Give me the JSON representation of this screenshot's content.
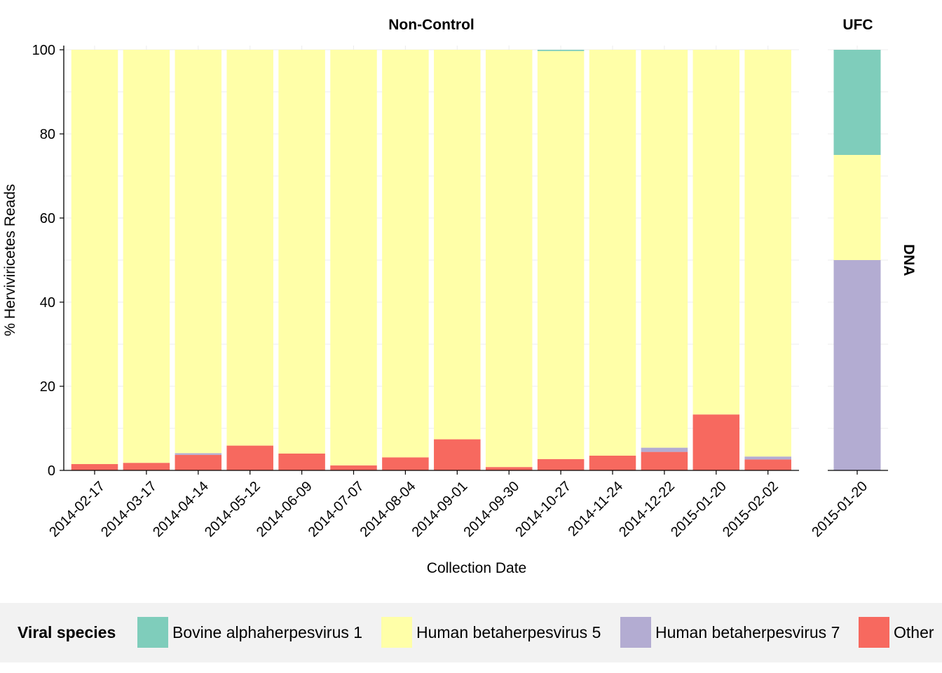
{
  "chart_data": {
    "type": "bar",
    "stacked": true,
    "xlabel": "Collection Date",
    "ylabel": "% Herviviricetes Reads",
    "ylim": [
      0,
      100
    ],
    "yticks": [
      0,
      20,
      40,
      60,
      80,
      100
    ],
    "row_strip": "DNA",
    "panels": [
      {
        "title": "Non-Control",
        "categories": [
          "2014-02-17",
          "2014-03-17",
          "2014-04-14",
          "2014-05-12",
          "2014-06-09",
          "2014-07-07",
          "2014-08-04",
          "2014-09-01",
          "2014-09-30",
          "2014-10-27",
          "2014-11-24",
          "2014-12-22",
          "2015-01-20",
          "2015-02-02"
        ],
        "series": [
          {
            "name": "Other",
            "values": [
              1.5,
              1.8,
              3.7,
              5.9,
              4.0,
              1.2,
              3.1,
              7.4,
              0.8,
              2.7,
              3.5,
              4.4,
              13.3,
              2.6
            ]
          },
          {
            "name": "Human betaherpesvirus 7",
            "values": [
              0,
              0,
              0.4,
              0,
              0,
              0,
              0,
              0,
              0,
              0,
              0,
              1.0,
              0,
              0.7
            ]
          },
          {
            "name": "Human betaherpesvirus 5",
            "values": [
              98.5,
              98.2,
              95.9,
              94.1,
              96.0,
              98.8,
              96.9,
              92.6,
              99.2,
              97.0,
              96.5,
              94.6,
              86.7,
              96.7
            ]
          },
          {
            "name": "Bovine alphaherpesvirus 1",
            "values": [
              0,
              0,
              0,
              0,
              0,
              0,
              0,
              0,
              0,
              0.3,
              0,
              0,
              0,
              0
            ]
          }
        ]
      },
      {
        "title": "UFC",
        "categories": [
          "2015-01-20"
        ],
        "series": [
          {
            "name": "Other",
            "values": [
              0
            ]
          },
          {
            "name": "Human betaherpesvirus 7",
            "values": [
              50
            ]
          },
          {
            "name": "Human betaherpesvirus 5",
            "values": [
              25
            ]
          },
          {
            "name": "Bovine alphaherpesvirus 1",
            "values": [
              25
            ]
          }
        ]
      }
    ],
    "legend": {
      "title": "Viral species",
      "position": "bottom",
      "items": [
        {
          "name": "Bovine alphaherpesvirus 1",
          "color": "#7fcdbb"
        },
        {
          "name": "Human betaherpesvirus 5",
          "color": "#ffffa8"
        },
        {
          "name": "Human betaherpesvirus 7",
          "color": "#b3acd2"
        },
        {
          "name": "Other",
          "color": "#f7695f"
        }
      ]
    }
  }
}
